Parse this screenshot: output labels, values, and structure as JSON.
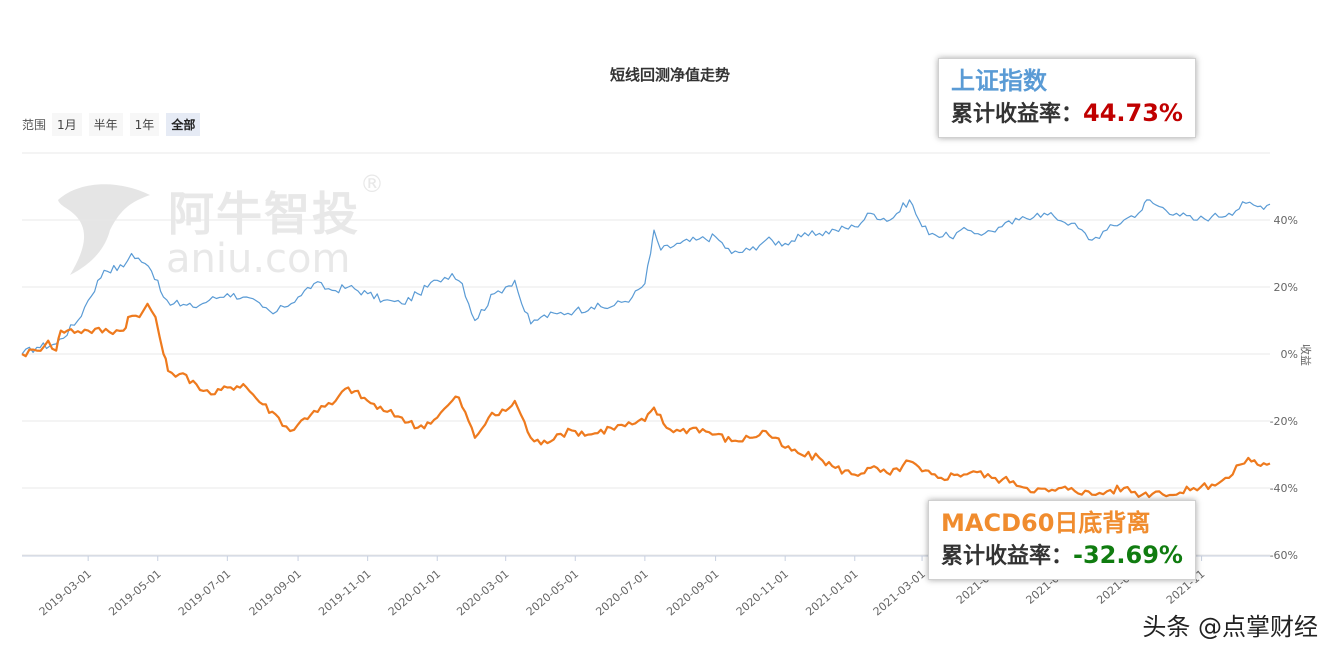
{
  "title": "短线回测净值走势",
  "range_selector": {
    "label": "范围",
    "buttons": [
      "1月",
      "半年",
      "1年",
      "全部"
    ],
    "active": "全部"
  },
  "watermark": {
    "cn": "阿牛智投",
    "en": "aniu.com",
    "reg": "®"
  },
  "callouts": {
    "index": {
      "name": "上证指数",
      "metric_label": "累计收益率：",
      "value": "44.73%"
    },
    "strategy": {
      "name": "MACD60日底背离",
      "metric_label": "累计收益率：",
      "value": "-32.69%"
    }
  },
  "source": "头条 @点掌财经",
  "colors": {
    "index_line": "#5a9bd5",
    "strategy_line": "#ee7a1e",
    "positive_value": "#c00000",
    "negative_value": "#107c10",
    "grid": "#e8e8e8"
  },
  "chart_data": {
    "type": "line",
    "title": "短线回测净值走势",
    "x_tick_labels": [
      "2019-03-01",
      "2019-05-01",
      "2019-07-01",
      "2019-09-01",
      "2019-11-01",
      "2020-01-01",
      "2020-03-01",
      "2020-05-01",
      "2020-07-01",
      "2020-09-01",
      "2020-11-01",
      "2021-01-01",
      "2021-03-01",
      "2021-05",
      "2021-07",
      "2021-09",
      "2021-11"
    ],
    "y_tick_labels": [
      "40%",
      "20%",
      "0%",
      "-20%",
      "-40%",
      "-60%"
    ],
    "y_tick_values": [
      40,
      20,
      0,
      -20,
      -40,
      -60
    ],
    "ylabel": "收益",
    "ylim": [
      -60,
      50
    ],
    "xlim": [
      "2019-01-02",
      "2021-12-31"
    ],
    "grid": true,
    "series": [
      {
        "name": "上证指数",
        "color": "#5a9bd5",
        "points": [
          [
            "2019-01-02",
            0
          ],
          [
            "2019-01-15",
            2
          ],
          [
            "2019-02-01",
            3
          ],
          [
            "2019-02-20",
            10
          ],
          [
            "2019-03-01",
            16
          ],
          [
            "2019-03-15",
            25
          ],
          [
            "2019-04-01",
            26
          ],
          [
            "2019-04-08",
            30
          ],
          [
            "2019-04-20",
            27
          ],
          [
            "2019-05-01",
            22
          ],
          [
            "2019-05-06",
            17
          ],
          [
            "2019-05-15",
            15
          ],
          [
            "2019-06-01",
            14
          ],
          [
            "2019-06-15",
            16
          ],
          [
            "2019-07-01",
            18
          ],
          [
            "2019-07-15",
            17
          ],
          [
            "2019-08-01",
            14
          ],
          [
            "2019-08-10",
            12
          ],
          [
            "2019-08-20",
            14
          ],
          [
            "2019-09-01",
            17
          ],
          [
            "2019-09-15",
            21
          ],
          [
            "2019-10-01",
            19
          ],
          [
            "2019-10-15",
            20
          ],
          [
            "2019-11-01",
            18
          ],
          [
            "2019-11-15",
            16
          ],
          [
            "2019-12-01",
            15
          ],
          [
            "2019-12-15",
            18
          ],
          [
            "2020-01-01",
            22
          ],
          [
            "2020-01-14",
            24
          ],
          [
            "2020-01-23",
            21
          ],
          [
            "2020-02-03",
            10
          ],
          [
            "2020-02-20",
            18
          ],
          [
            "2020-03-01",
            20
          ],
          [
            "2020-03-09",
            22
          ],
          [
            "2020-03-15",
            15
          ],
          [
            "2020-03-23",
            9
          ],
          [
            "2020-04-01",
            11
          ],
          [
            "2020-04-15",
            12
          ],
          [
            "2020-05-01",
            13
          ],
          [
            "2020-05-15",
            14
          ],
          [
            "2020-06-01",
            14
          ],
          [
            "2020-06-20",
            17
          ],
          [
            "2020-07-01",
            21
          ],
          [
            "2020-07-06",
            30
          ],
          [
            "2020-07-09",
            37
          ],
          [
            "2020-07-15",
            31
          ],
          [
            "2020-08-01",
            33
          ],
          [
            "2020-08-15",
            34
          ],
          [
            "2020-09-01",
            35
          ],
          [
            "2020-09-15",
            30
          ],
          [
            "2020-10-01",
            31
          ],
          [
            "2020-10-15",
            34
          ],
          [
            "2020-11-01",
            33
          ],
          [
            "2020-11-15",
            35
          ],
          [
            "2020-12-01",
            36
          ],
          [
            "2020-12-15",
            37
          ],
          [
            "2021-01-01",
            38
          ],
          [
            "2021-01-15",
            42
          ],
          [
            "2021-02-01",
            40
          ],
          [
            "2021-02-18",
            46
          ],
          [
            "2021-03-01",
            38
          ],
          [
            "2021-03-10",
            36
          ],
          [
            "2021-03-25",
            35
          ],
          [
            "2021-04-10",
            37
          ],
          [
            "2021-04-25",
            36
          ],
          [
            "2021-05-10",
            38
          ],
          [
            "2021-05-25",
            40
          ],
          [
            "2021-06-10",
            42
          ],
          [
            "2021-06-25",
            41
          ],
          [
            "2021-07-10",
            39
          ],
          [
            "2021-07-28",
            34
          ],
          [
            "2021-08-10",
            37
          ],
          [
            "2021-08-25",
            40
          ],
          [
            "2021-09-10",
            43
          ],
          [
            "2021-09-14",
            46
          ],
          [
            "2021-09-25",
            44
          ],
          [
            "2021-10-10",
            42
          ],
          [
            "2021-10-25",
            40
          ],
          [
            "2021-11-10",
            41
          ],
          [
            "2021-11-25",
            42
          ],
          [
            "2021-12-10",
            45
          ],
          [
            "2021-12-20",
            44
          ],
          [
            "2021-12-31",
            44.73
          ]
        ]
      },
      {
        "name": "MACD60日底背离",
        "color": "#ee7a1e",
        "points": [
          [
            "2019-01-02",
            0
          ],
          [
            "2019-01-15",
            1
          ],
          [
            "2019-01-25",
            4
          ],
          [
            "2019-02-01",
            1
          ],
          [
            "2019-02-05",
            7
          ],
          [
            "2019-03-01",
            7
          ],
          [
            "2019-04-01",
            7
          ],
          [
            "2019-04-05",
            11
          ],
          [
            "2019-04-15",
            11
          ],
          [
            "2019-04-22",
            15
          ],
          [
            "2019-04-29",
            11
          ],
          [
            "2019-05-06",
            0
          ],
          [
            "2019-05-10",
            -5
          ],
          [
            "2019-05-20",
            -6
          ],
          [
            "2019-06-01",
            -8
          ],
          [
            "2019-06-10",
            -11
          ],
          [
            "2019-06-20",
            -12
          ],
          [
            "2019-07-01",
            -10
          ],
          [
            "2019-07-15",
            -9
          ],
          [
            "2019-08-01",
            -15
          ],
          [
            "2019-08-15",
            -19
          ],
          [
            "2019-08-25",
            -23
          ],
          [
            "2019-09-01",
            -21
          ],
          [
            "2019-09-15",
            -17
          ],
          [
            "2019-10-01",
            -15
          ],
          [
            "2019-10-15",
            -10
          ],
          [
            "2019-11-01",
            -14
          ],
          [
            "2019-11-15",
            -17
          ],
          [
            "2019-12-01",
            -19
          ],
          [
            "2019-12-15",
            -22
          ],
          [
            "2020-01-01",
            -19
          ],
          [
            "2020-01-14",
            -14
          ],
          [
            "2020-01-20",
            -13
          ],
          [
            "2020-02-03",
            -25
          ],
          [
            "2020-02-15",
            -19
          ],
          [
            "2020-03-01",
            -17
          ],
          [
            "2020-03-09",
            -14
          ],
          [
            "2020-03-23",
            -25
          ],
          [
            "2020-04-01",
            -27
          ],
          [
            "2020-04-15",
            -24
          ],
          [
            "2020-05-01",
            -23
          ],
          [
            "2020-05-15",
            -24
          ],
          [
            "2020-06-01",
            -22
          ],
          [
            "2020-06-20",
            -21
          ],
          [
            "2020-07-01",
            -20
          ],
          [
            "2020-07-09",
            -16
          ],
          [
            "2020-07-20",
            -22
          ],
          [
            "2020-08-01",
            -23
          ],
          [
            "2020-08-15",
            -22
          ],
          [
            "2020-09-01",
            -24
          ],
          [
            "2020-09-15",
            -26
          ],
          [
            "2020-10-01",
            -25
          ],
          [
            "2020-10-15",
            -23
          ],
          [
            "2020-11-01",
            -28
          ],
          [
            "2020-11-15",
            -30
          ],
          [
            "2020-12-01",
            -31
          ],
          [
            "2020-12-15",
            -34
          ],
          [
            "2021-01-01",
            -36
          ],
          [
            "2021-01-15",
            -34
          ],
          [
            "2021-02-01",
            -36
          ],
          [
            "2021-02-18",
            -32
          ],
          [
            "2021-03-01",
            -35
          ],
          [
            "2021-03-15",
            -37
          ],
          [
            "2021-04-01",
            -36
          ],
          [
            "2021-04-15",
            -35
          ],
          [
            "2021-05-01",
            -37
          ],
          [
            "2021-05-20",
            -38
          ],
          [
            "2021-06-01",
            -40
          ],
          [
            "2021-06-20",
            -41
          ],
          [
            "2021-07-10",
            -40
          ],
          [
            "2021-07-28",
            -42
          ],
          [
            "2021-08-10",
            -41
          ],
          [
            "2021-08-25",
            -40
          ],
          [
            "2021-09-10",
            -42
          ],
          [
            "2021-09-25",
            -41
          ],
          [
            "2021-10-10",
            -42
          ],
          [
            "2021-10-25",
            -40
          ],
          [
            "2021-11-10",
            -39
          ],
          [
            "2021-11-25",
            -37
          ],
          [
            "2021-12-05",
            -33
          ],
          [
            "2021-12-12",
            -31
          ],
          [
            "2021-12-20",
            -33
          ],
          [
            "2021-12-31",
            -32.69
          ]
        ]
      }
    ]
  }
}
